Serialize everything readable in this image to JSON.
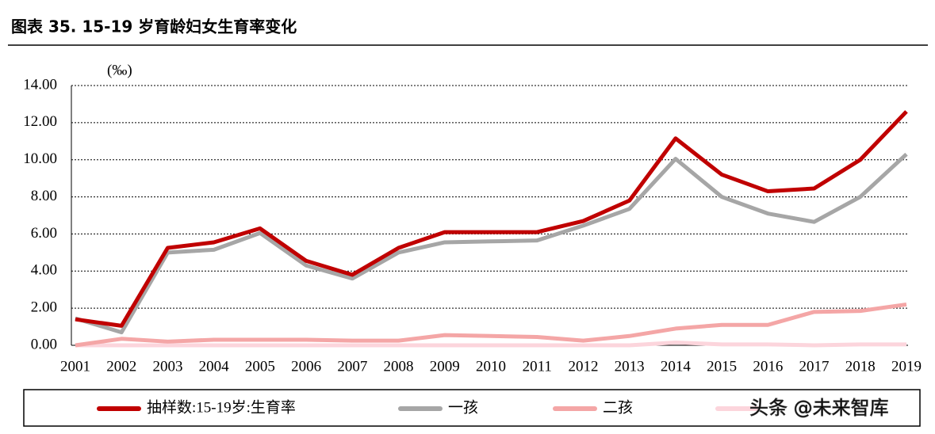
{
  "chart_data": {
    "type": "line",
    "title": "图表 35. 15-19 岁育龄妇女生育率变化",
    "y_label": "(‰)",
    "categories": [
      "2001",
      "2002",
      "2003",
      "2004",
      "2005",
      "2006",
      "2007",
      "2008",
      "2009",
      "2010",
      "2011",
      "2012",
      "2013",
      "2014",
      "2015",
      "2016",
      "2017",
      "2018",
      "2019"
    ],
    "series": [
      {
        "name": "抽样数:15-19岁:生育率",
        "color": "#c00000",
        "values": [
          1.4,
          1.05,
          5.25,
          5.55,
          6.3,
          4.55,
          3.8,
          5.25,
          6.1,
          6.1,
          6.1,
          6.7,
          7.8,
          11.15,
          9.2,
          8.3,
          8.45,
          10.0,
          12.6
        ]
      },
      {
        "name": "一孩",
        "color": "#a6a6a6",
        "values": [
          1.45,
          0.7,
          5.0,
          5.15,
          6.05,
          4.3,
          3.6,
          5.0,
          5.55,
          5.6,
          5.65,
          6.45,
          7.35,
          10.05,
          8.0,
          7.1,
          6.65,
          8.0,
          10.3
        ]
      },
      {
        "name": "二孩",
        "color": "#f4a6a6",
        "values": [
          0.0,
          0.35,
          0.2,
          0.3,
          0.3,
          0.3,
          0.25,
          0.25,
          0.55,
          0.5,
          0.45,
          0.25,
          0.5,
          0.9,
          1.1,
          1.1,
          1.8,
          1.85,
          2.2
        ]
      },
      {
        "color": "#fcd5dc",
        "values": [
          0,
          0,
          0,
          0,
          0,
          0,
          0,
          0,
          0,
          0,
          0,
          0,
          0,
          0.15,
          0.05,
          0.05,
          0,
          0.05,
          0.05
        ]
      }
    ],
    "ylim": [
      0,
      14
    ],
    "yticks": [
      {
        "value": 0,
        "label": "0.00"
      },
      {
        "value": 2,
        "label": "2.00"
      },
      {
        "value": 4,
        "label": "4.00"
      },
      {
        "value": 6,
        "label": "6.00"
      },
      {
        "value": 8,
        "label": "8.00"
      },
      {
        "value": 10,
        "label": "10.00"
      },
      {
        "value": 12,
        "label": "12.00"
      },
      {
        "value": 14,
        "label": "14.00"
      }
    ],
    "grid": true,
    "watermark": "头条 @未来智库"
  }
}
